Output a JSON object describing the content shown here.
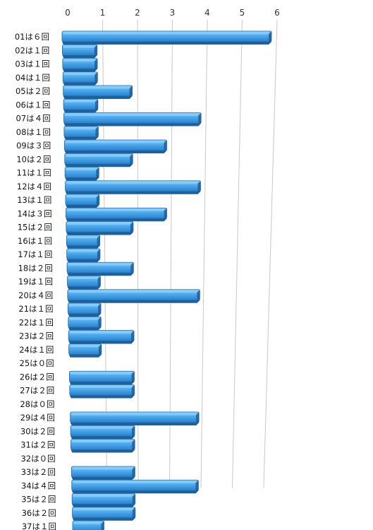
{
  "chart_data": {
    "type": "bar",
    "orientation": "horizontal",
    "x_ticks": [
      "0",
      "1",
      "2",
      "3",
      "4",
      "5",
      "6"
    ],
    "xlim": [
      0,
      6
    ],
    "grid": true,
    "legend": "none",
    "colors": {
      "bar": "#3b9be3",
      "bar_dark": "#1f5f9a",
      "bar_light": "#8fd0ff",
      "grid": "#c8c8c8"
    },
    "categories": [
      "01は６回",
      "02は１回",
      "03は１回",
      "04は１回",
      "05は２回",
      "06は１回",
      "07は４回",
      "08は１回",
      "09は３回",
      "10は２回",
      "11は１回",
      "12は４回",
      "13は１回",
      "14は３回",
      "15は２回",
      "16は１回",
      "17は１回",
      "18は２回",
      "19は１回",
      "20は４回",
      "21は１回",
      "22は１回",
      "23は２回",
      "24は１回",
      "25は０回",
      "26は２回",
      "27は２回",
      "28は０回",
      "29は４回",
      "30は２回",
      "31は２回",
      "32は０回",
      "33は２回",
      "34は４回",
      "35は２回",
      "36は２回",
      "37は１回"
    ],
    "values": [
      6,
      1,
      1,
      1,
      2,
      1,
      4,
      1,
      3,
      2,
      1,
      4,
      1,
      3,
      2,
      1,
      1,
      2,
      1,
      4,
      1,
      1,
      2,
      1,
      0,
      2,
      2,
      0,
      4,
      2,
      2,
      0,
      2,
      4,
      2,
      2,
      1
    ]
  }
}
